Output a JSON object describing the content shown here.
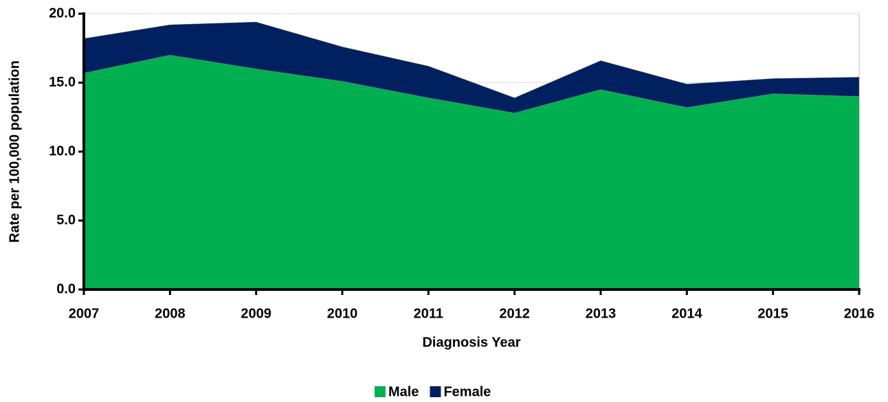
{
  "chart_data": {
    "type": "stacked_area",
    "y_label": "Rate per 100,000 population",
    "x_label": "Diagnosis Year",
    "x": [
      2007,
      2008,
      2009,
      2010,
      2011,
      2012,
      2013,
      2014,
      2015,
      2016
    ],
    "xlim": [
      2007,
      2016
    ],
    "xticks": [
      2007,
      2008,
      2009,
      2010,
      2011,
      2012,
      2013,
      2014,
      2015,
      2016
    ],
    "ylim": [
      0,
      20
    ],
    "yticks": [
      {
        "value": 0,
        "label": "0.0"
      },
      {
        "value": 5,
        "label": "5.0"
      },
      {
        "value": 10,
        "label": "10.0"
      },
      {
        "value": 15,
        "label": "15.0"
      },
      {
        "value": 20,
        "label": "20.0"
      }
    ],
    "grid": true,
    "legend": "bottom",
    "series": [
      {
        "name": "Male",
        "color": "#00b050",
        "values": [
          15.7,
          17.0,
          16.0,
          15.1,
          13.9,
          12.8,
          14.5,
          13.2,
          14.2,
          14.0
        ]
      },
      {
        "name": "Female",
        "color": "#002060",
        "values": [
          2.5,
          2.2,
          3.4,
          2.5,
          2.3,
          1.1,
          2.1,
          1.7,
          1.1,
          1.4
        ]
      }
    ]
  }
}
